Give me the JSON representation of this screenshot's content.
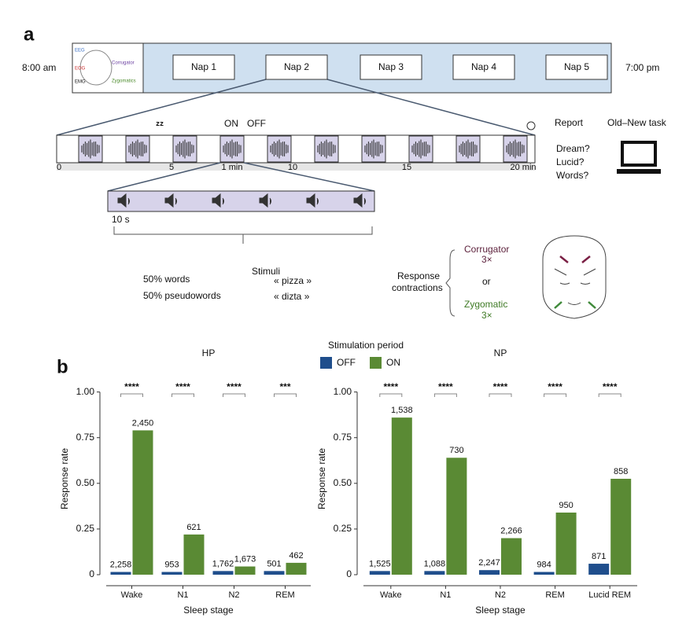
{
  "diagram": {
    "panel_a": "a",
    "panel_b": "b",
    "start": "8:00 am",
    "end": "7:00 pm",
    "naps": [
      "Nap 1",
      "Nap 2",
      "Nap 3",
      "Nap 4",
      "Nap 5"
    ],
    "electrodes": [
      "EEG",
      "EOG",
      "EMG"
    ],
    "inset_muscles": [
      "Corrugator",
      "Zygomatics"
    ],
    "on": "ON",
    "off": "OFF",
    "timeline_ticks": [
      "0",
      "5",
      "1 min",
      "10",
      "15",
      "20 min"
    ],
    "block": "10 s",
    "report": "Report",
    "task": "Old–New task",
    "questions": [
      "Dream?",
      "Lucid?",
      "Words?"
    ],
    "stimuli": "Stimuli",
    "stim_types": [
      "50% words",
      "50% pseudowords"
    ],
    "examples": [
      "« pizza »",
      "« dizta »"
    ],
    "response": [
      "Response",
      "contractions"
    ],
    "corrugator": "Corrugator",
    "zygomatic": "Zygomatic",
    "reps": [
      "3×",
      "3×"
    ],
    "or": "or"
  },
  "chart_data": [
    {
      "type": "bar",
      "title": "HP",
      "xlabel": "Sleep stage",
      "ylabel": "Response rate",
      "legend_title": "Stimulation period",
      "categories": [
        "Wake",
        "N1",
        "N2",
        "REM"
      ],
      "series": [
        {
          "name": "OFF",
          "color": "#1f4e8c",
          "values": [
            0.015,
            0.015,
            0.02,
            0.02
          ],
          "n_labels": [
            "2,258",
            "953",
            "1,762",
            "501"
          ]
        },
        {
          "name": "ON",
          "color": "#5a8a34",
          "values": [
            0.79,
            0.22,
            0.045,
            0.065
          ],
          "n_labels": [
            "2,450",
            "621",
            "1,673",
            "462"
          ]
        }
      ],
      "significance": [
        "****",
        "****",
        "****",
        "***"
      ],
      "ylim": [
        0,
        1.05
      ],
      "yticks": [
        0,
        0.25,
        {
          "value": 0.5,
          "label": "0.50"
        },
        0.75,
        {
          "value": 1,
          "label": "1.00"
        }
      ]
    },
    {
      "type": "bar",
      "title": "NP",
      "xlabel": "Sleep stage",
      "ylabel": "Response rate",
      "categories": [
        "Wake",
        "N1",
        "N2",
        "REM",
        "Lucid REM"
      ],
      "series": [
        {
          "color": "#1f4e8c",
          "values": [
            0.02,
            0.02,
            0.025,
            0.015,
            0.06
          ],
          "n_labels": [
            "1,525",
            "1,088",
            "2,247",
            "984",
            "871"
          ]
        },
        {
          "color": "#5a8a34",
          "values": [
            0.86,
            0.64,
            0.2,
            0.34,
            0.525
          ],
          "n_labels": [
            "1,538",
            "730",
            "2,266",
            "950",
            "858"
          ]
        }
      ],
      "significance": [
        "****",
        "****",
        "****",
        "****",
        "****"
      ],
      "ylim": [
        0,
        1.05
      ],
      "yticks": [
        0,
        0.25,
        {
          "value": 0.5,
          "label": "0.50"
        },
        0.75,
        {
          "value": 1,
          "label": "1.00"
        }
      ]
    }
  ]
}
